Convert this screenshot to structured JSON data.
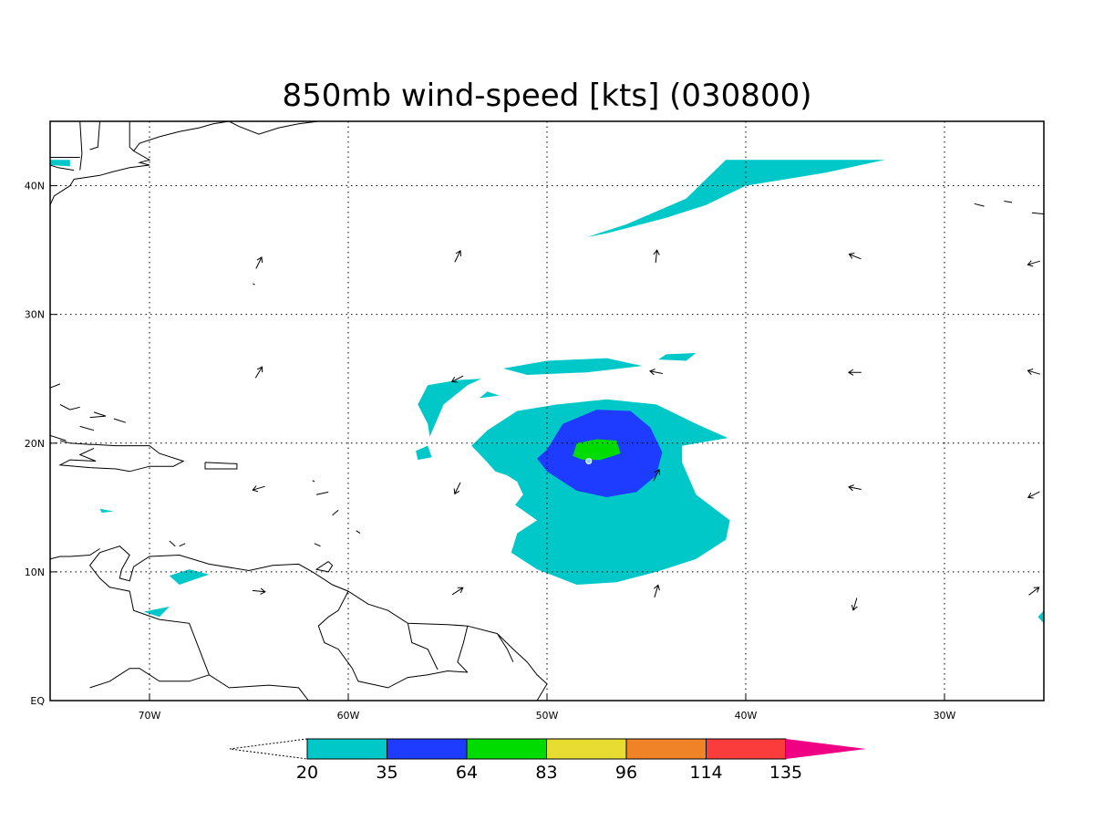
{
  "title": "850mb wind-speed [kts] (030800)",
  "axes": {
    "lon_min": -75,
    "lon_max": -25,
    "lat_min": 0,
    "lat_max": 45,
    "x_ticks": [
      {
        "lon": -70,
        "label": "70W"
      },
      {
        "lon": -60,
        "label": "60W"
      },
      {
        "lon": -50,
        "label": "50W"
      },
      {
        "lon": -40,
        "label": "40W"
      },
      {
        "lon": -30,
        "label": "30W"
      }
    ],
    "y_ticks": [
      {
        "lat": 0,
        "label": "EQ"
      },
      {
        "lat": 10,
        "label": "10N"
      },
      {
        "lat": 20,
        "label": "20N"
      },
      {
        "lat": 30,
        "label": "30N"
      },
      {
        "lat": 40,
        "label": "40N"
      }
    ],
    "grid": true
  },
  "colorbar": {
    "levels": [
      "20",
      "35",
      "64",
      "83",
      "96",
      "114",
      "135"
    ],
    "colors": [
      "#00c8c8",
      "#1e3cff",
      "#00dc00",
      "#e6dc32",
      "#f08228",
      "#fa3c3c",
      "#f00082"
    ],
    "low_extend_color": "#ffffff"
  },
  "wind_contours": [
    {
      "level": 20,
      "color": "#00c8c8",
      "shapes": [
        [
          [
            -52.0,
            17.5
          ],
          [
            -51.5,
            17.0
          ],
          [
            -51.2,
            16.0
          ],
          [
            -51.6,
            15.2
          ],
          [
            -50.5,
            14.0
          ],
          [
            -51.5,
            13.0
          ],
          [
            -51.8,
            11.5
          ],
          [
            -50.5,
            10.2
          ],
          [
            -48.5,
            9.0
          ],
          [
            -46.5,
            9.2
          ],
          [
            -44.5,
            10.0
          ],
          [
            -42.5,
            11.0
          ],
          [
            -41.0,
            12.5
          ],
          [
            -40.8,
            14.0
          ],
          [
            -42.5,
            16.0
          ],
          [
            -43.2,
            18.5
          ],
          [
            -43.2,
            19.8
          ],
          [
            -40.9,
            20.4
          ],
          [
            -42.5,
            21.5
          ],
          [
            -44.5,
            23.0
          ],
          [
            -47.0,
            23.4
          ],
          [
            -49.5,
            23.0
          ],
          [
            -51.5,
            22.5
          ],
          [
            -53.0,
            21.0
          ],
          [
            -53.8,
            19.8
          ],
          [
            -53.0,
            18.5
          ],
          [
            -52.6,
            17.8
          ]
        ],
        [
          [
            -55.9,
            20.5
          ],
          [
            -55.2,
            23.0
          ],
          [
            -54.0,
            24.5
          ],
          [
            -53.3,
            25.0
          ],
          [
            -54.5,
            24.9
          ],
          [
            -56.0,
            24.5
          ],
          [
            -56.5,
            23.0
          ],
          [
            -56.0,
            21.5
          ]
        ],
        [
          [
            -52.2,
            25.8
          ],
          [
            -50.0,
            26.4
          ],
          [
            -47.0,
            26.6
          ],
          [
            -45.2,
            26.0
          ],
          [
            -48.0,
            25.5
          ],
          [
            -51.0,
            25.3
          ]
        ],
        [
          [
            -44.0,
            26.9
          ],
          [
            -42.5,
            27.0
          ],
          [
            -43.0,
            26.4
          ],
          [
            -44.4,
            26.5
          ]
        ],
        [
          [
            -53.4,
            23.5
          ],
          [
            -52.4,
            23.7
          ],
          [
            -53.0,
            24.0
          ]
        ],
        [
          [
            -56.5,
            18.7
          ],
          [
            -55.8,
            18.9
          ],
          [
            -56.0,
            19.8
          ],
          [
            -56.6,
            19.4
          ]
        ],
        [
          [
            -48.0,
            36.0
          ],
          [
            -46.0,
            37.0
          ],
          [
            -43.0,
            39.0
          ],
          [
            -41.0,
            42.0
          ],
          [
            -33.0,
            42.0
          ],
          [
            -36.0,
            41.0
          ],
          [
            -40.0,
            40.0
          ],
          [
            -42.0,
            38.5
          ],
          [
            -44.0,
            37.5
          ],
          [
            -47.0,
            36.3
          ]
        ],
        [
          [
            -75.0,
            42.0
          ],
          [
            -74.0,
            42.0
          ],
          [
            -74.0,
            41.5
          ],
          [
            -75.0,
            41.6
          ]
        ],
        [
          [
            -68.5,
            9.0
          ],
          [
            -67.0,
            9.8
          ],
          [
            -68.0,
            10.2
          ],
          [
            -69.0,
            9.7
          ]
        ],
        [
          [
            -69.5,
            6.5
          ],
          [
            -69.0,
            7.3
          ],
          [
            -70.3,
            6.9
          ]
        ],
        [
          [
            -72.5,
            14.9
          ],
          [
            -71.8,
            14.7
          ],
          [
            -72.4,
            14.6
          ]
        ],
        [
          [
            -25.0,
            6.0
          ],
          [
            -25.3,
            6.5
          ],
          [
            -25.0,
            7.0
          ]
        ]
      ]
    },
    {
      "level": 35,
      "color": "#1e3cff",
      "shapes": [
        [
          [
            -50.0,
            19.5
          ],
          [
            -49.2,
            21.5
          ],
          [
            -47.5,
            22.6
          ],
          [
            -45.8,
            22.5
          ],
          [
            -44.8,
            21.2
          ],
          [
            -44.2,
            19.3
          ],
          [
            -44.5,
            17.5
          ],
          [
            -45.5,
            16.2
          ],
          [
            -47.0,
            15.8
          ],
          [
            -48.5,
            16.3
          ],
          [
            -50.0,
            17.8
          ],
          [
            -50.5,
            18.8
          ]
        ]
      ]
    },
    {
      "level": 64,
      "color": "#00dc00",
      "shapes": [
        [
          [
            -48.7,
            19.0
          ],
          [
            -48.5,
            20.0
          ],
          [
            -47.5,
            20.3
          ],
          [
            -46.5,
            20.2
          ],
          [
            -46.3,
            19.2
          ],
          [
            -47.3,
            18.7
          ],
          [
            -48.2,
            18.7
          ]
        ]
      ]
    }
  ],
  "wind_vectors": [
    {
      "lon": -64.5,
      "lat": 34.0,
      "u": 0.5,
      "v": 1
    },
    {
      "lon": -54.5,
      "lat": 34.5,
      "u": 0.5,
      "v": 1
    },
    {
      "lon": -44.5,
      "lat": 34.5,
      "u": 0.1,
      "v": 1
    },
    {
      "lon": -34.5,
      "lat": 34.5,
      "u": -1,
      "v": 0.4
    },
    {
      "lon": -25.5,
      "lat": 34.0,
      "u": -1,
      "v": -0.3
    },
    {
      "lon": -64.5,
      "lat": 25.5,
      "u": 0.6,
      "v": 1
    },
    {
      "lon": -54.5,
      "lat": 25.0,
      "u": -1,
      "v": -0.5
    },
    {
      "lon": -44.5,
      "lat": 25.5,
      "u": -1,
      "v": 0.2
    },
    {
      "lon": -34.5,
      "lat": 25.5,
      "u": -1,
      "v": 0
    },
    {
      "lon": -25.5,
      "lat": 25.5,
      "u": -1,
      "v": 0.3
    },
    {
      "lon": -64.5,
      "lat": 16.5,
      "u": -1,
      "v": -0.3
    },
    {
      "lon": -54.5,
      "lat": 16.5,
      "u": -0.5,
      "v": -1
    },
    {
      "lon": -44.5,
      "lat": 17.5,
      "u": 0.5,
      "v": 1
    },
    {
      "lon": -34.5,
      "lat": 16.5,
      "u": -1,
      "v": 0.2
    },
    {
      "lon": -25.5,
      "lat": 16.0,
      "u": -1,
      "v": -0.5
    },
    {
      "lon": -64.5,
      "lat": 8.5,
      "u": 1,
      "v": -0.1
    },
    {
      "lon": -54.5,
      "lat": 8.5,
      "u": 0.8,
      "v": 0.5
    },
    {
      "lon": -44.5,
      "lat": 8.5,
      "u": 0.3,
      "v": 1
    },
    {
      "lon": -34.5,
      "lat": 7.5,
      "u": -0.3,
      "v": -1
    },
    {
      "lon": -25.5,
      "lat": 8.5,
      "u": 0.8,
      "v": 0.6
    }
  ],
  "coastlines": [
    [
      [
        -62.0,
        0.0
      ],
      [
        -62.5,
        1.0
      ],
      [
        -64.0,
        1.2
      ],
      [
        -66.0,
        1.0
      ],
      [
        -67.0,
        2.0
      ],
      [
        -67.5,
        4.0
      ],
      [
        -68.0,
        6.0
      ],
      [
        -69.5,
        6.3
      ],
      [
        -70.8,
        7.0
      ],
      [
        -71.0,
        8.5
      ],
      [
        -72.0,
        8.8
      ],
      [
        -72.5,
        9.5
      ],
      [
        -73.0,
        10.5
      ],
      [
        -72.5,
        11.5
      ],
      [
        -71.5,
        12.0
      ],
      [
        -71.0,
        11.3
      ],
      [
        -71.4,
        10.2
      ],
      [
        -71.5,
        9.5
      ],
      [
        -71.0,
        9.3
      ],
      [
        -70.8,
        10.4
      ],
      [
        -70.0,
        11.2
      ],
      [
        -68.5,
        11.3
      ],
      [
        -67.0,
        10.6
      ],
      [
        -65.0,
        10.1
      ],
      [
        -63.8,
        10.5
      ],
      [
        -62.5,
        10.6
      ],
      [
        -61.8,
        10.0
      ],
      [
        -60.8,
        9.0
      ],
      [
        -60.0,
        8.5
      ],
      [
        -59.0,
        7.5
      ],
      [
        -58.0,
        7.0
      ],
      [
        -57.0,
        6.0
      ],
      [
        -55.0,
        5.9
      ],
      [
        -54.0,
        5.8
      ],
      [
        -52.5,
        5.2
      ],
      [
        -51.7,
        4.0
      ],
      [
        -51.0,
        3.0
      ],
      [
        -50.5,
        2.0
      ],
      [
        -50.0,
        1.3
      ],
      [
        -50.5,
        0.0
      ]
    ],
    [
      [
        -60.0,
        8.5
      ],
      [
        -60.5,
        7.0
      ],
      [
        -61.0,
        6.5
      ],
      [
        -61.5,
        5.8
      ],
      [
        -61.2,
        4.5
      ],
      [
        -60.5,
        4.0
      ],
      [
        -59.8,
        2.5
      ],
      [
        -59.5,
        1.5
      ],
      [
        -58.0,
        1.0
      ],
      [
        -57.0,
        1.8
      ],
      [
        -56.0,
        2.0
      ],
      [
        -55.0,
        2.3
      ],
      [
        -54.0,
        2.2
      ]
    ],
    [
      [
        -73.0,
        1.0
      ],
      [
        -72.0,
        1.5
      ],
      [
        -71.0,
        2.5
      ],
      [
        -70.5,
        2.5
      ],
      [
        -69.5,
        1.5
      ],
      [
        -68.0,
        1.5
      ],
      [
        -67.0,
        2.0
      ]
    ],
    [
      [
        -57.0,
        6.0
      ],
      [
        -56.8,
        4.5
      ],
      [
        -56.0,
        4.0
      ],
      [
        -55.5,
        2.4
      ]
    ],
    [
      [
        -54.0,
        5.8
      ],
      [
        -54.2,
        4.5
      ],
      [
        -54.5,
        3.0
      ],
      [
        -54.0,
        2.2
      ]
    ],
    [
      [
        -52.5,
        5.2
      ],
      [
        -52.0,
        4.0
      ],
      [
        -51.7,
        3.0
      ]
    ],
    [
      [
        -75.0,
        11.0
      ],
      [
        -74.5,
        11.2
      ],
      [
        -74.0,
        11.2
      ],
      [
        -73.0,
        11.3
      ],
      [
        -72.5,
        11.8
      ]
    ],
    [
      [
        -61.0,
        10.8
      ],
      [
        -61.6,
        10.2
      ],
      [
        -61.0,
        10.0
      ],
      [
        -60.8,
        10.5
      ],
      [
        -61.0,
        10.8
      ]
    ],
    [
      [
        -74.5,
        20.2
      ],
      [
        -74.0,
        20.0
      ],
      [
        -73.0,
        19.9
      ],
      [
        -72.8,
        19.9
      ],
      [
        -71.7,
        19.8
      ],
      [
        -70.0,
        19.8
      ],
      [
        -69.5,
        19.2
      ],
      [
        -68.3,
        18.6
      ],
      [
        -68.8,
        18.2
      ],
      [
        -70.0,
        18.2
      ],
      [
        -71.0,
        17.8
      ],
      [
        -71.7,
        18.0
      ],
      [
        -73.0,
        18.1
      ],
      [
        -74.5,
        18.3
      ],
      [
        -74.0,
        18.7
      ],
      [
        -72.7,
        18.6
      ],
      [
        -73.5,
        19.1
      ],
      [
        -72.8,
        19.6
      ]
    ],
    [
      [
        -67.2,
        18.5
      ],
      [
        -65.6,
        18.4
      ],
      [
        -65.6,
        18.0
      ],
      [
        -67.2,
        18.0
      ],
      [
        -67.2,
        18.5
      ]
    ],
    [
      [
        -75.0,
        20.6
      ],
      [
        -74.2,
        20.2
      ]
    ],
    [
      [
        -74.5,
        23.0
      ],
      [
        -74.0,
        22.6
      ],
      [
        -73.5,
        22.8
      ]
    ],
    [
      [
        -72.8,
        22.4
      ],
      [
        -72.2,
        22.1
      ],
      [
        -73.0,
        22.0
      ]
    ],
    [
      [
        -73.5,
        21.3
      ],
      [
        -72.8,
        21.0
      ]
    ],
    [
      [
        -75.0,
        24.3
      ],
      [
        -74.5,
        24.6
      ]
    ],
    [
      [
        -71.8,
        21.9
      ],
      [
        -71.2,
        21.6
      ]
    ],
    [
      [
        -64.8,
        32.4
      ],
      [
        -64.7,
        32.3
      ]
    ],
    [
      [
        -75.0,
        38.5
      ],
      [
        -74.8,
        39.2
      ],
      [
        -74.0,
        40.0
      ],
      [
        -73.8,
        40.5
      ],
      [
        -72.5,
        40.8
      ],
      [
        -71.8,
        41.1
      ],
      [
        -71.0,
        41.4
      ],
      [
        -70.0,
        41.6
      ],
      [
        -70.5,
        41.8
      ],
      [
        -70.0,
        42.0
      ],
      [
        -70.8,
        42.7
      ],
      [
        -70.5,
        43.3
      ],
      [
        -69.5,
        43.8
      ],
      [
        -68.5,
        44.2
      ],
      [
        -67.5,
        44.5
      ],
      [
        -66.8,
        44.8
      ],
      [
        -66.0,
        45.0
      ]
    ],
    [
      [
        -66.0,
        45.0
      ],
      [
        -65.5,
        44.6
      ],
      [
        -64.5,
        44.0
      ],
      [
        -63.5,
        44.5
      ],
      [
        -62.5,
        44.8
      ],
      [
        -61.5,
        45.0
      ]
    ],
    [
      [
        -71.0,
        45.0
      ],
      [
        -71.0,
        43.0
      ],
      [
        -70.8,
        42.7
      ]
    ],
    [
      [
        -73.5,
        45.0
      ],
      [
        -73.4,
        42.5
      ],
      [
        -73.5,
        41.2
      ]
    ],
    [
      [
        -72.5,
        45.0
      ],
      [
        -72.6,
        43.0
      ],
      [
        -73.0,
        42.8
      ]
    ],
    [
      [
        -75.0,
        42.2
      ],
      [
        -73.5,
        42.2
      ]
    ],
    [
      [
        -75.0,
        41.6
      ],
      [
        -74.6,
        41.4
      ],
      [
        -73.8,
        41.2
      ]
    ],
    [
      [
        -27.0,
        38.8
      ],
      [
        -26.6,
        38.7
      ]
    ],
    [
      [
        -28.5,
        38.6
      ],
      [
        -28.0,
        38.4
      ]
    ],
    [
      [
        -25.6,
        37.9
      ],
      [
        -25.0,
        37.8
      ]
    ],
    [
      [
        -60.5,
        14.8
      ],
      [
        -60.8,
        14.4
      ]
    ],
    [
      [
        -61.0,
        16.2
      ],
      [
        -61.6,
        16.0
      ]
    ],
    [
      [
        -61.8,
        17.1
      ],
      [
        -61.7,
        17.0
      ]
    ],
    [
      [
        -59.6,
        13.2
      ],
      [
        -59.4,
        13.0
      ]
    ],
    [
      [
        -61.4,
        12.0
      ],
      [
        -61.7,
        12.2
      ]
    ],
    [
      [
        -68.2,
        12.2
      ],
      [
        -68.5,
        12.0
      ]
    ],
    [
      [
        -69.0,
        12.4
      ],
      [
        -68.7,
        12.0
      ]
    ]
  ],
  "storm_center": {
    "lon": -47.9,
    "lat": 18.6
  }
}
